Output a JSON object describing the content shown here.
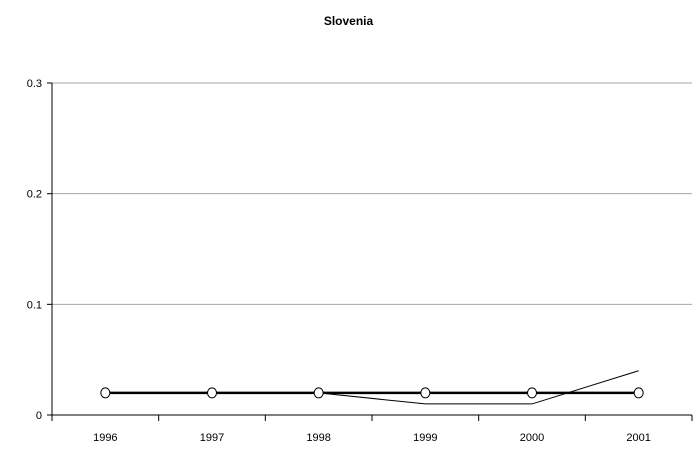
{
  "chart_data": {
    "type": "line",
    "title": "Slovenia",
    "xlabel": "",
    "ylabel": "",
    "categories": [
      "1996",
      "1997",
      "1998",
      "1999",
      "2000",
      "2001"
    ],
    "ylim": [
      0,
      0.3
    ],
    "yticks": [
      0,
      0.1,
      0.2,
      0.3
    ],
    "ytick_labels": [
      "0",
      "0.1",
      "0.2",
      "0.3"
    ],
    "grid": true,
    "series": [
      {
        "values": [
          0.02,
          0.02,
          0.02,
          0.02,
          0.02,
          0.02
        ],
        "style": "thick-line-with-open-circle-markers",
        "color": "#000000"
      },
      {
        "values": [
          0.02,
          0.02,
          0.02,
          0.01,
          0.01,
          0.04
        ],
        "style": "thin-line",
        "color": "#000000"
      }
    ]
  }
}
